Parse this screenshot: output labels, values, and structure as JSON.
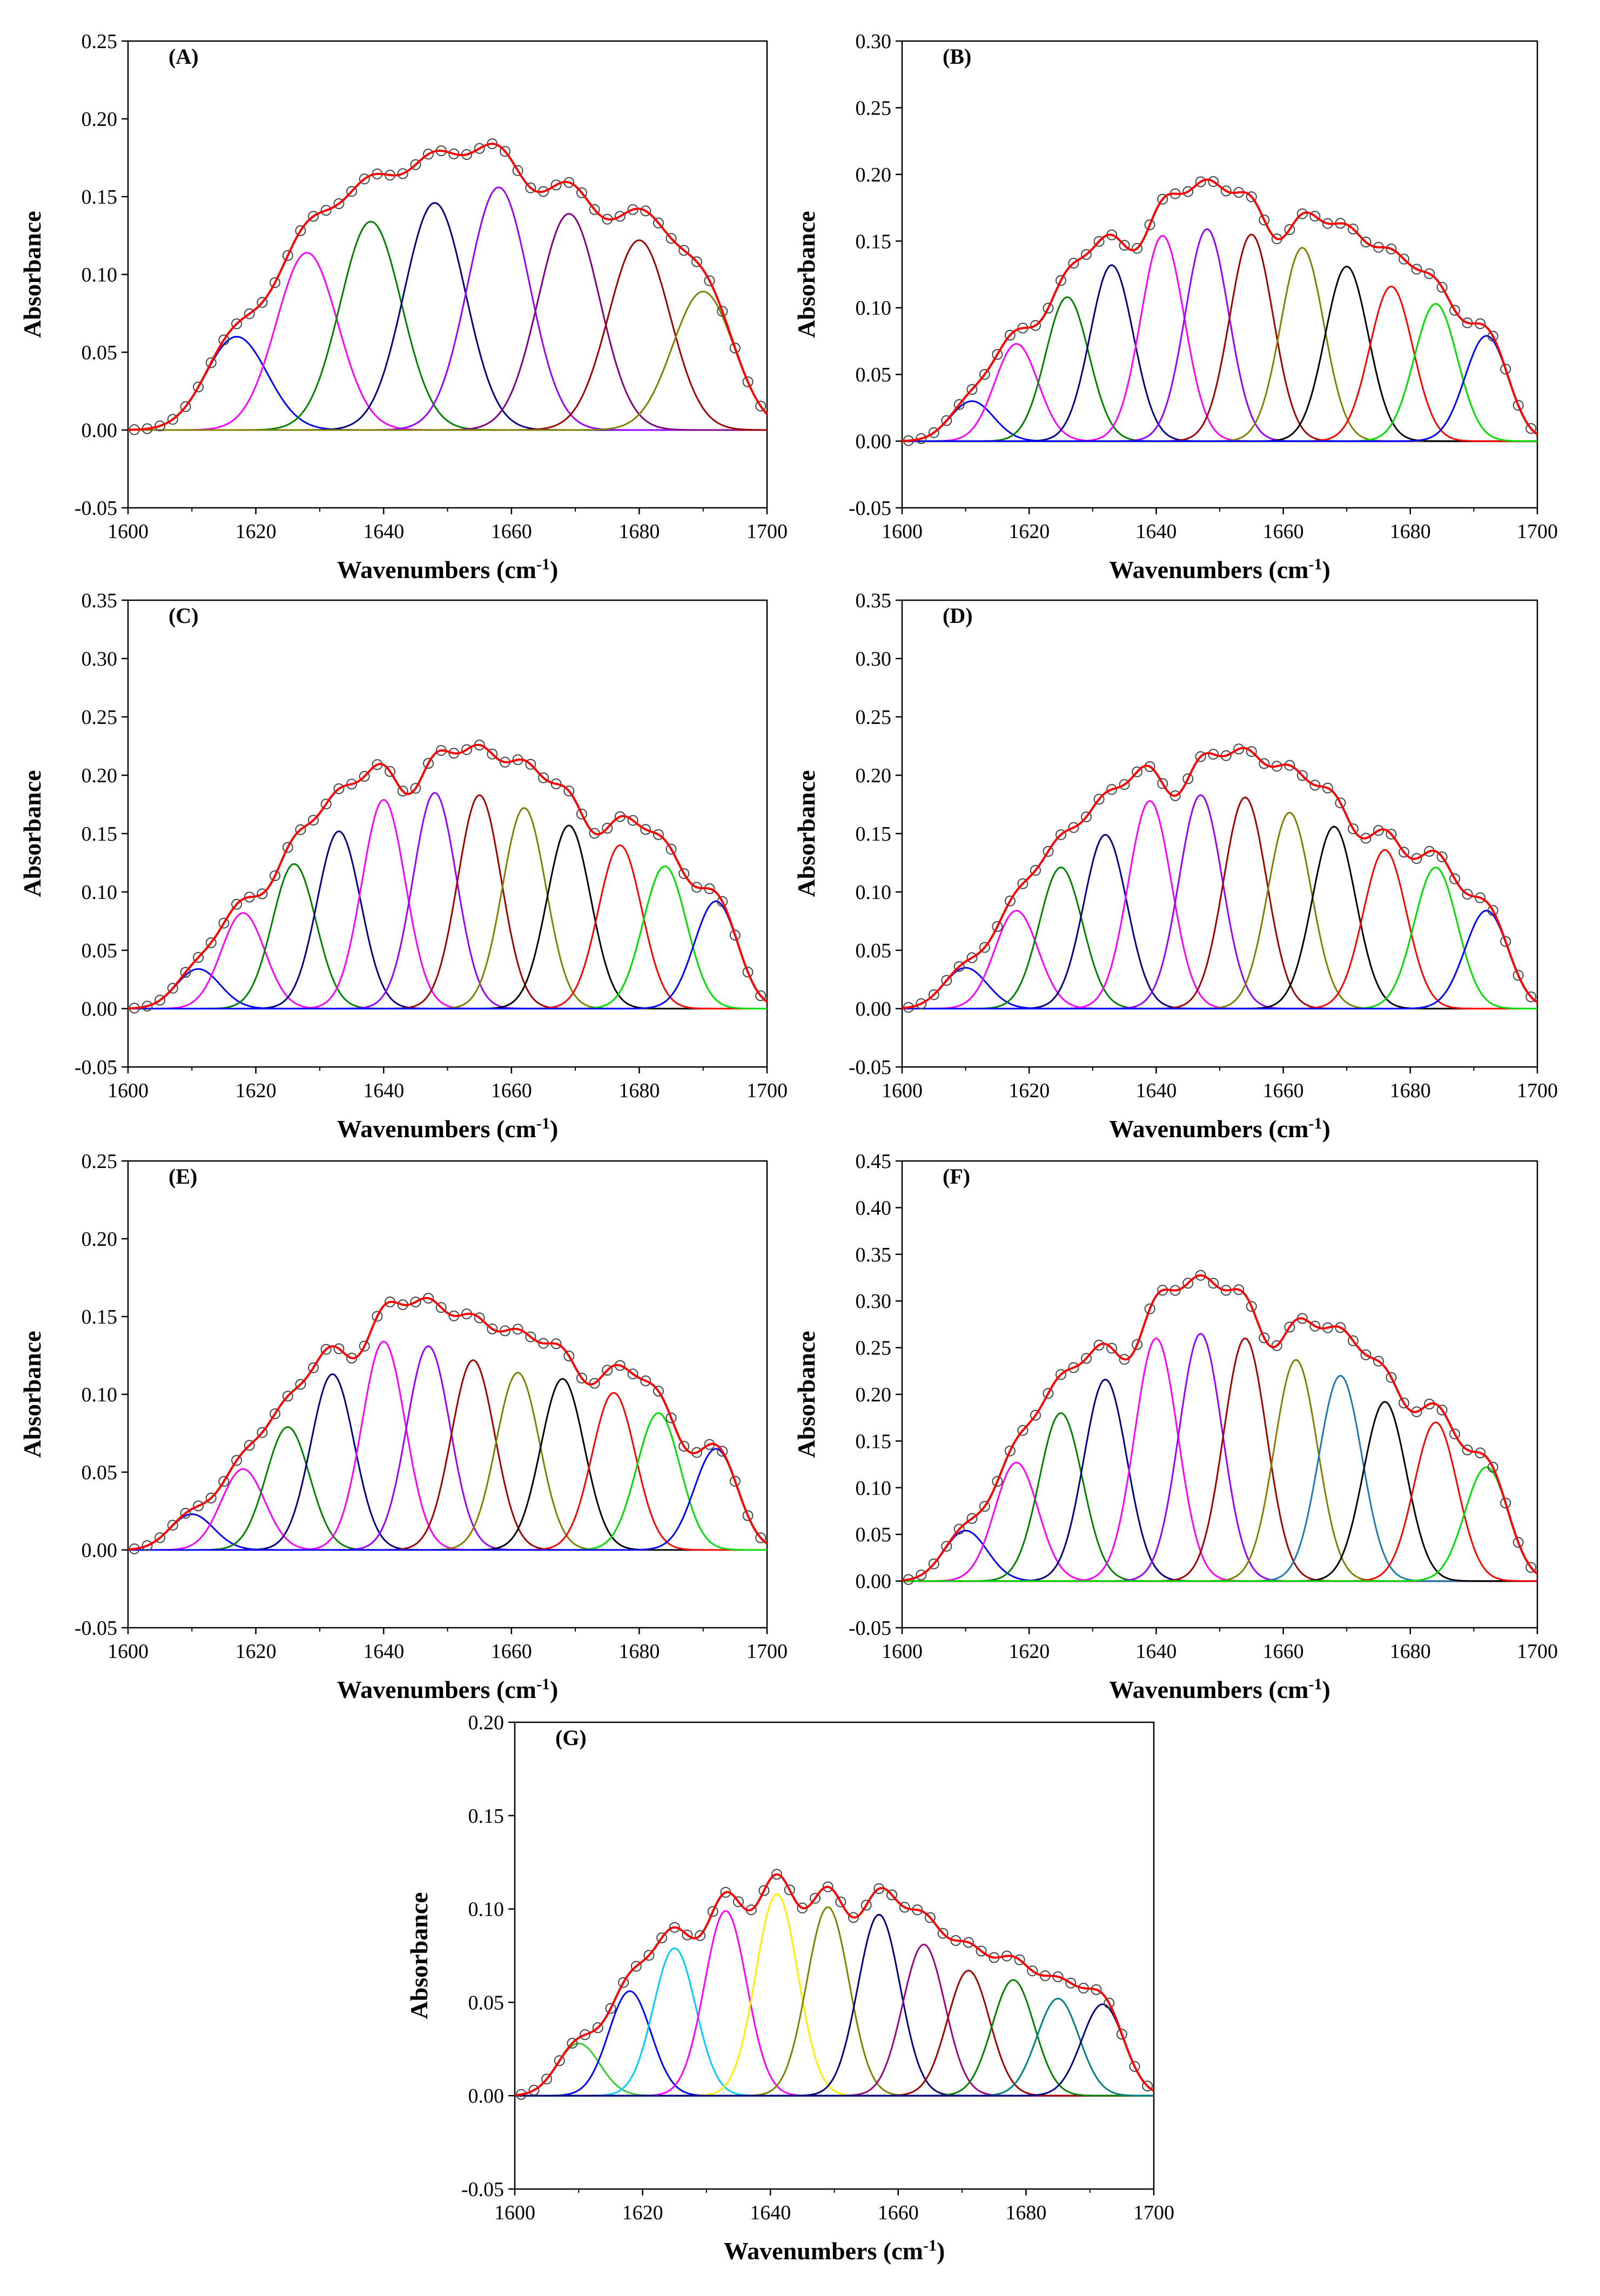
{
  "figure": {
    "description_free": true
  },
  "chart_data": [
    {
      "type": "line",
      "panel": "(A)",
      "xlabel": "Wavenumbers (cm-1)",
      "ylabel": "Absorbance",
      "xlim": [
        1600,
        1700
      ],
      "ylim": [
        -0.05,
        0.25
      ],
      "xticks": [
        1600,
        1620,
        1640,
        1660,
        1680,
        1700
      ],
      "yticks": [
        -0.05,
        0.0,
        0.05,
        0.1,
        0.15,
        0.2,
        0.25
      ],
      "peak_sigma": 4.8,
      "peaks": [
        {
          "center": 1617,
          "height": 0.06,
          "color": "#0000ff"
        },
        {
          "center": 1628,
          "height": 0.114,
          "color": "#ff00ff"
        },
        {
          "center": 1638,
          "height": 0.134,
          "color": "#008000"
        },
        {
          "center": 1648,
          "height": 0.146,
          "color": "#000080"
        },
        {
          "center": 1658,
          "height": 0.156,
          "color": "#9900ff"
        },
        {
          "center": 1669,
          "height": 0.139,
          "color": "#800080"
        },
        {
          "center": 1680,
          "height": 0.122,
          "color": "#a00000"
        },
        {
          "center": 1690,
          "height": 0.089,
          "color": "#808000"
        }
      ],
      "fit_color": "#ff0000",
      "baseline_color": "#808000"
    },
    {
      "type": "line",
      "panel": "(B)",
      "xlabel": "Wavenumbers (cm-1)",
      "ylabel": "Absorbance",
      "xlim": [
        1600,
        1700
      ],
      "ylim": [
        -0.05,
        0.3
      ],
      "xticks": [
        1600,
        1620,
        1640,
        1660,
        1680,
        1700
      ],
      "yticks": [
        -0.05,
        0.0,
        0.05,
        0.1,
        0.15,
        0.2,
        0.25,
        0.3
      ],
      "peak_sigma": 3.4,
      "peaks": [
        {
          "center": 1611,
          "height": 0.03,
          "color": "#0000ff"
        },
        {
          "center": 1618,
          "height": 0.073,
          "color": "#ff00ff"
        },
        {
          "center": 1626,
          "height": 0.108,
          "color": "#008000"
        },
        {
          "center": 1633,
          "height": 0.132,
          "color": "#000080"
        },
        {
          "center": 1641,
          "height": 0.154,
          "color": "#ff00ff"
        },
        {
          "center": 1648,
          "height": 0.159,
          "color": "#9900ff"
        },
        {
          "center": 1655,
          "height": 0.155,
          "color": "#a00000"
        },
        {
          "center": 1663,
          "height": 0.145,
          "color": "#808000"
        },
        {
          "center": 1670,
          "height": 0.131,
          "color": "#000000"
        },
        {
          "center": 1677,
          "height": 0.116,
          "color": "#ff0000"
        },
        {
          "center": 1684,
          "height": 0.103,
          "color": "#00dd00"
        },
        {
          "center": 1692,
          "height": 0.079,
          "color": "#0000ff"
        }
      ],
      "fit_color": "#ff0000",
      "baseline_color": "#00cc00"
    },
    {
      "type": "line",
      "panel": "(C)",
      "xlabel": "Wavenumbers (cm-1)",
      "ylabel": "Absorbance",
      "xlim": [
        1600,
        1700
      ],
      "ylim": [
        -0.05,
        0.35
      ],
      "xticks": [
        1600,
        1620,
        1640,
        1660,
        1680,
        1700
      ],
      "yticks": [
        -0.05,
        0.0,
        0.05,
        0.1,
        0.15,
        0.2,
        0.25,
        0.3,
        0.35
      ],
      "peak_sigma": 3.4,
      "peaks": [
        {
          "center": 1611,
          "height": 0.034,
          "color": "#0000ff"
        },
        {
          "center": 1618,
          "height": 0.082,
          "color": "#ff00ff"
        },
        {
          "center": 1626,
          "height": 0.124,
          "color": "#008000"
        },
        {
          "center": 1633,
          "height": 0.152,
          "color": "#000080"
        },
        {
          "center": 1640,
          "height": 0.179,
          "color": "#ff00ff"
        },
        {
          "center": 1648,
          "height": 0.185,
          "color": "#9900ff"
        },
        {
          "center": 1655,
          "height": 0.183,
          "color": "#a00000"
        },
        {
          "center": 1662,
          "height": 0.172,
          "color": "#808000"
        },
        {
          "center": 1669,
          "height": 0.157,
          "color": "#000000"
        },
        {
          "center": 1677,
          "height": 0.14,
          "color": "#ff0000"
        },
        {
          "center": 1684,
          "height": 0.122,
          "color": "#00dd00"
        },
        {
          "center": 1692,
          "height": 0.092,
          "color": "#0000ff"
        }
      ],
      "fit_color": "#ff0000",
      "baseline_color": "#00cc00"
    },
    {
      "type": "line",
      "panel": "(D)",
      "xlabel": "Wavenumbers (cm-1)",
      "ylabel": "Absorbance",
      "xlim": [
        1600,
        1700
      ],
      "ylim": [
        -0.05,
        0.35
      ],
      "xticks": [
        1600,
        1620,
        1640,
        1660,
        1680,
        1700
      ],
      "yticks": [
        -0.05,
        0.0,
        0.05,
        0.1,
        0.15,
        0.2,
        0.25,
        0.3,
        0.35
      ],
      "peak_sigma": 3.4,
      "peaks": [
        {
          "center": 1610,
          "height": 0.035,
          "color": "#0000ff"
        },
        {
          "center": 1618,
          "height": 0.084,
          "color": "#ff00ff"
        },
        {
          "center": 1625,
          "height": 0.121,
          "color": "#008000"
        },
        {
          "center": 1632,
          "height": 0.149,
          "color": "#000080"
        },
        {
          "center": 1639,
          "height": 0.178,
          "color": "#ff00ff"
        },
        {
          "center": 1647,
          "height": 0.183,
          "color": "#9900ff"
        },
        {
          "center": 1654,
          "height": 0.181,
          "color": "#a00000"
        },
        {
          "center": 1661,
          "height": 0.168,
          "color": "#808000"
        },
        {
          "center": 1668,
          "height": 0.156,
          "color": "#000000"
        },
        {
          "center": 1676,
          "height": 0.136,
          "color": "#ff0000"
        },
        {
          "center": 1684,
          "height": 0.121,
          "color": "#00dd00"
        },
        {
          "center": 1692,
          "height": 0.084,
          "color": "#0000ff"
        }
      ],
      "fit_color": "#ff0000",
      "baseline_color": "#00cc00"
    },
    {
      "type": "line",
      "panel": "(E)",
      "xlabel": "Wavenumbers (cm-1)",
      "ylabel": "Absorbance",
      "xlim": [
        1600,
        1700
      ],
      "ylim": [
        -0.05,
        0.25
      ],
      "xticks": [
        1600,
        1620,
        1640,
        1660,
        1680,
        1700
      ],
      "yticks": [
        -0.05,
        0.0,
        0.05,
        0.1,
        0.15,
        0.2,
        0.25
      ],
      "peak_sigma": 3.4,
      "peaks": [
        {
          "center": 1610,
          "height": 0.023,
          "color": "#0000ff"
        },
        {
          "center": 1618,
          "height": 0.052,
          "color": "#ff00ff"
        },
        {
          "center": 1625,
          "height": 0.079,
          "color": "#008000"
        },
        {
          "center": 1632,
          "height": 0.113,
          "color": "#000080"
        },
        {
          "center": 1640,
          "height": 0.134,
          "color": "#ff00ff"
        },
        {
          "center": 1647,
          "height": 0.131,
          "color": "#9900ff"
        },
        {
          "center": 1654,
          "height": 0.122,
          "color": "#a00000"
        },
        {
          "center": 1661,
          "height": 0.114,
          "color": "#808000"
        },
        {
          "center": 1668,
          "height": 0.11,
          "color": "#000000"
        },
        {
          "center": 1676,
          "height": 0.101,
          "color": "#ff0000"
        },
        {
          "center": 1683,
          "height": 0.088,
          "color": "#00dd00"
        },
        {
          "center": 1692,
          "height": 0.065,
          "color": "#0000ff"
        }
      ],
      "fit_color": "#ff0000",
      "baseline_color": "#0000ff"
    },
    {
      "type": "line",
      "panel": "(F)",
      "xlabel": "Wavenumbers (cm-1)",
      "ylabel": "Absorbance",
      "xlim": [
        1600,
        1700
      ],
      "ylim": [
        -0.05,
        0.45
      ],
      "xticks": [
        1600,
        1620,
        1640,
        1660,
        1680,
        1700
      ],
      "yticks": [
        -0.05,
        0.0,
        0.05,
        0.1,
        0.15,
        0.2,
        0.25,
        0.3,
        0.35,
        0.4,
        0.45
      ],
      "peak_sigma": 3.4,
      "peaks": [
        {
          "center": 1610,
          "height": 0.054,
          "color": "#0000ff"
        },
        {
          "center": 1618,
          "height": 0.127,
          "color": "#ff00ff"
        },
        {
          "center": 1625,
          "height": 0.18,
          "color": "#008000"
        },
        {
          "center": 1632,
          "height": 0.216,
          "color": "#000080"
        },
        {
          "center": 1640,
          "height": 0.26,
          "color": "#ff00ff"
        },
        {
          "center": 1647,
          "height": 0.265,
          "color": "#9900ff"
        },
        {
          "center": 1654,
          "height": 0.26,
          "color": "#a00000"
        },
        {
          "center": 1662,
          "height": 0.237,
          "color": "#808000"
        },
        {
          "center": 1669,
          "height": 0.22,
          "color": "#1f77b4"
        },
        {
          "center": 1676,
          "height": 0.192,
          "color": "#000000"
        },
        {
          "center": 1684,
          "height": 0.17,
          "color": "#ff0000"
        },
        {
          "center": 1692,
          "height": 0.122,
          "color": "#00dd00"
        }
      ],
      "fit_color": "#ff0000",
      "baseline_color": "#00cc00"
    },
    {
      "type": "line",
      "panel": "(G)",
      "xlabel": "Wavenumbers (cm-1)",
      "ylabel": "Absorbance",
      "xlim": [
        1600,
        1700
      ],
      "ylim": [
        -0.05,
        0.2
      ],
      "xticks": [
        1600,
        1620,
        1640,
        1660,
        1680,
        1700
      ],
      "yticks": [
        -0.05,
        0.0,
        0.05,
        0.1,
        0.15,
        0.2
      ],
      "peak_sigma": 3.3,
      "peaks": [
        {
          "center": 1610,
          "height": 0.028,
          "color": "#33cc33"
        },
        {
          "center": 1618,
          "height": 0.056,
          "color": "#0000ff"
        },
        {
          "center": 1625,
          "height": 0.079,
          "color": "#00ccff"
        },
        {
          "center": 1633,
          "height": 0.099,
          "color": "#ff00ff"
        },
        {
          "center": 1641,
          "height": 0.108,
          "color": "#ffee00"
        },
        {
          "center": 1649,
          "height": 0.101,
          "color": "#808000"
        },
        {
          "center": 1657,
          "height": 0.097,
          "color": "#000080"
        },
        {
          "center": 1664,
          "height": 0.081,
          "color": "#a00080"
        },
        {
          "center": 1671,
          "height": 0.067,
          "color": "#a00000"
        },
        {
          "center": 1678,
          "height": 0.062,
          "color": "#008000"
        },
        {
          "center": 1685,
          "height": 0.052,
          "color": "#008080"
        },
        {
          "center": 1692,
          "height": 0.049,
          "color": "#000080"
        }
      ],
      "fit_color": "#ff0000",
      "baseline_color": "#0000ff"
    }
  ]
}
